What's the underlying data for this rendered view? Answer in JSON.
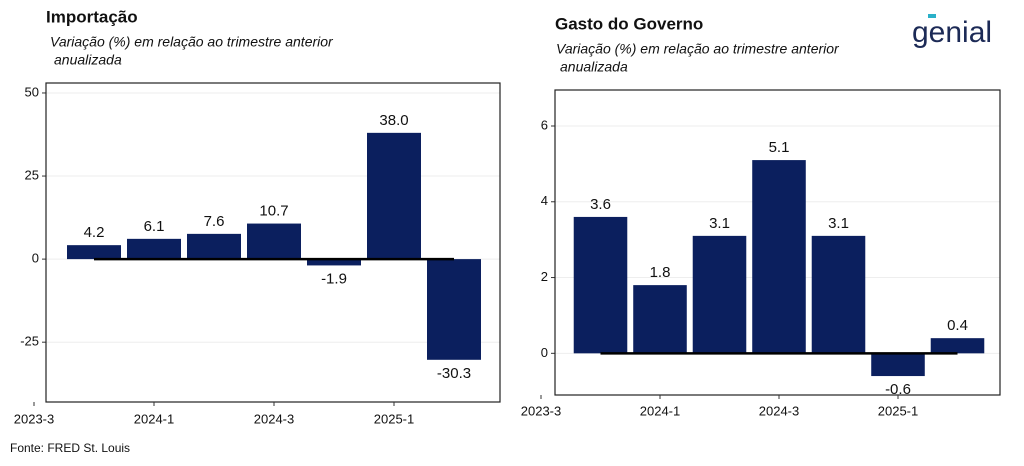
{
  "chart_data": [
    {
      "type": "bar",
      "title": "Importação",
      "subtitle": [
        "Variação (%) em relação ao trimestre anterior",
        "anualizada"
      ],
      "categories": [
        "2023-3",
        null,
        "2024-1",
        null,
        "2024-3",
        null,
        "2025-1",
        null
      ],
      "values": [
        null,
        4.2,
        6.1,
        7.6,
        10.7,
        -1.9,
        38.0,
        -30.3
      ],
      "value_labels": [
        null,
        "4.2",
        "6.1",
        "7.6",
        "10.7",
        "-1.9",
        "38.0",
        "-30.3"
      ],
      "color": "#0b1f5e",
      "ylim": [
        -43,
        53
      ],
      "yticks": [
        -25,
        0,
        25,
        50
      ],
      "grid": true
    },
    {
      "type": "bar",
      "title": "Gasto do Governo",
      "subtitle": [
        "Variação (%) em relação ao trimestre anterior",
        "anualizada"
      ],
      "categories": [
        "2023-3",
        null,
        "2024-1",
        null,
        "2024-3",
        null,
        "2025-1",
        null
      ],
      "values": [
        null,
        3.6,
        1.8,
        3.1,
        5.1,
        3.1,
        -0.6,
        0.4
      ],
      "color": "#0b1f5e",
      "ylim": [
        -1.1,
        6.95
      ],
      "yticks": [
        0,
        2,
        4,
        6
      ],
      "grid": true
    }
  ],
  "source": "Fonte: FRED St. Louis",
  "logo": "genial"
}
